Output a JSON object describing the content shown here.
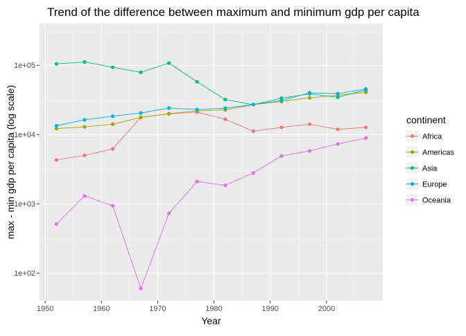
{
  "chart_data": {
    "type": "line",
    "title": "Trend of the difference between maximum and minimum gdp per capita",
    "xlabel": "Year",
    "ylabel": "max - min gdp per capita (log scale)",
    "y_scale": "log10",
    "xlim": [
      1949,
      2010
    ],
    "ylim": [
      40,
      400000
    ],
    "x_ticks": [
      1950,
      1960,
      1970,
      1980,
      1990,
      2000
    ],
    "x_tick_labels": [
      "1950",
      "1960",
      "1970",
      "1980",
      "1990",
      "2000"
    ],
    "y_ticks": [
      100,
      1000,
      10000,
      100000
    ],
    "y_tick_labels": [
      "1e+02",
      "1e+03",
      "1e+04",
      "1e+05"
    ],
    "grid": true,
    "legend_title": "continent",
    "legend_position": "right",
    "x": [
      1952,
      1957,
      1962,
      1967,
      1972,
      1977,
      1982,
      1987,
      1992,
      1997,
      2002,
      2007
    ],
    "series": [
      {
        "name": "Africa",
        "color": "#F8766D",
        "values": [
          4300,
          5000,
          6200,
          17700,
          19900,
          21100,
          16600,
          11200,
          12700,
          14100,
          11900,
          12700
        ]
      },
      {
        "name": "Americas",
        "color": "#A3A500",
        "values": [
          12200,
          12900,
          14100,
          17700,
          20000,
          22000,
          22700,
          27000,
          30000,
          33800,
          37000,
          40700
        ]
      },
      {
        "name": "Asia",
        "color": "#00BF7D",
        "values": [
          104700,
          111400,
          93600,
          79000,
          107700,
          57700,
          32000,
          27000,
          33500,
          38700,
          34600,
          44000
        ]
      },
      {
        "name": "Europe",
        "color": "#00B0F6",
        "values": [
          13400,
          16300,
          18400,
          20500,
          24100,
          23000,
          24000,
          27200,
          31000,
          40000,
          39000,
          45400
        ]
      },
      {
        "name": "Oceania",
        "color": "#E76BF3",
        "values": [
          510,
          1300,
          940,
          60,
          730,
          2100,
          1850,
          2800,
          4900,
          5800,
          7300,
          8900
        ]
      }
    ]
  }
}
